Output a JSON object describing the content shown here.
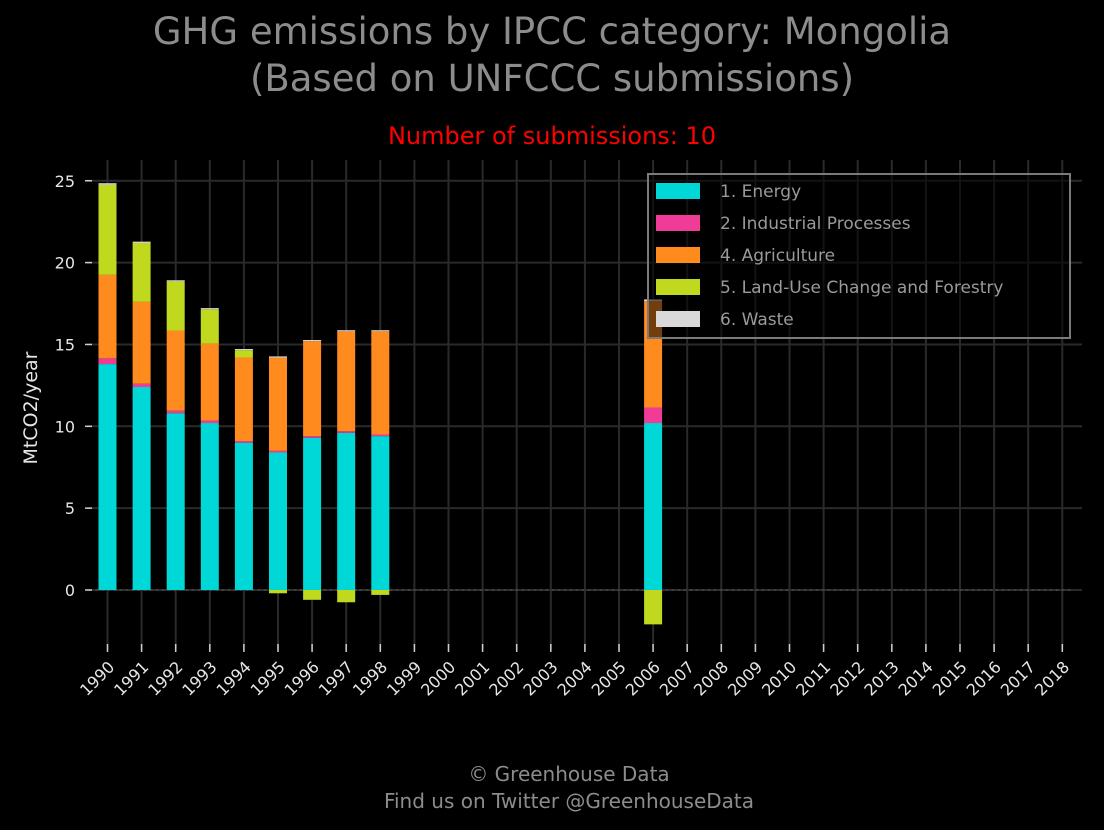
{
  "header": {
    "title_line1": "GHG emissions by IPCC category: Mongolia",
    "title_line2": "(Based on UNFCCC submissions)",
    "subtitle": "Number of submissions: 10"
  },
  "footer": {
    "line1": "© Greenhouse Data",
    "line2": "Find us on Twitter @GreenhouseData"
  },
  "colors": {
    "background": "#000000",
    "grid": "#2a2a2a",
    "title": "#8c8c8c",
    "subtitle": "#ff0000"
  },
  "chart_data": {
    "type": "bar",
    "stacked": true,
    "ylabel": "MtCO2/year",
    "ylim": [
      -3.5,
      26
    ],
    "yticks": [
      0,
      5,
      10,
      15,
      20,
      25
    ],
    "grid": true,
    "legend_position": "top-right",
    "categories": [
      "1990",
      "1991",
      "1992",
      "1993",
      "1994",
      "1995",
      "1996",
      "1997",
      "1998",
      "1999",
      "2000",
      "2001",
      "2002",
      "2003",
      "2004",
      "2005",
      "2006",
      "2007",
      "2008",
      "2009",
      "2010",
      "2011",
      "2012",
      "2013",
      "2014",
      "2015",
      "2016",
      "2017",
      "2018"
    ],
    "series": [
      {
        "name": "1. Energy",
        "color": "#00d8d8",
        "values": [
          13.8,
          12.4,
          10.8,
          10.2,
          9.0,
          8.4,
          9.3,
          9.6,
          9.4,
          null,
          null,
          null,
          null,
          null,
          null,
          null,
          10.2,
          null,
          null,
          null,
          null,
          null,
          null,
          null,
          null,
          null,
          null,
          null,
          null
        ]
      },
      {
        "name": "2. Industrial Processes",
        "color": "#f03c96",
        "values": [
          0.35,
          0.2,
          0.15,
          0.15,
          0.1,
          0.1,
          0.1,
          0.1,
          0.1,
          null,
          null,
          null,
          null,
          null,
          null,
          null,
          0.95,
          null,
          null,
          null,
          null,
          null,
          null,
          null,
          null,
          null,
          null,
          null,
          null
        ]
      },
      {
        "name": "4. Agriculture",
        "color": "#ff8a1e",
        "values": [
          5.1,
          5.0,
          4.9,
          4.7,
          5.1,
          5.7,
          5.8,
          6.1,
          6.3,
          null,
          null,
          null,
          null,
          null,
          null,
          null,
          6.5,
          null,
          null,
          null,
          null,
          null,
          null,
          null,
          null,
          null,
          null,
          null,
          null
        ]
      },
      {
        "name": "5. Land-Use Change and Forestry",
        "color": "#c0d81e",
        "values": [
          5.5,
          3.6,
          3.0,
          2.1,
          0.45,
          -0.2,
          -0.6,
          -0.75,
          -0.3,
          null,
          null,
          null,
          null,
          null,
          null,
          null,
          -2.1,
          null,
          null,
          null,
          null,
          null,
          null,
          null,
          null,
          null,
          null,
          null,
          null
        ]
      },
      {
        "name": "6. Waste",
        "color": "#d9d9d9",
        "values": [
          0.1,
          0.08,
          0.07,
          0.07,
          0.07,
          0.07,
          0.07,
          0.07,
          0.07,
          null,
          null,
          null,
          null,
          null,
          null,
          null,
          0.1,
          null,
          null,
          null,
          null,
          null,
          null,
          null,
          null,
          null,
          null,
          null,
          null
        ]
      }
    ]
  }
}
